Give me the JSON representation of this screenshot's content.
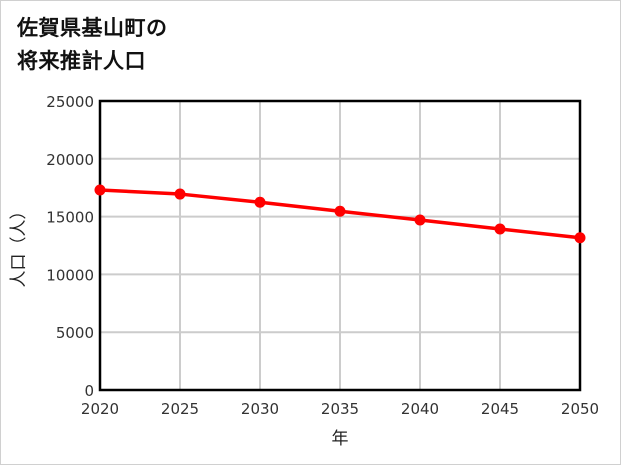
{
  "title": {
    "line1": "佐賀県基山町の",
    "line2": "将来推計人口"
  },
  "colors": {
    "series": "#ff0000",
    "grid": "#cccccc",
    "axis": "#000000",
    "border": "#d0d0d0"
  },
  "chart_data": {
    "type": "line",
    "title": "佐賀県基山町の将来推計人口",
    "xlabel": "年",
    "ylabel": "人口（人）",
    "x": [
      2020,
      2025,
      2030,
      2035,
      2040,
      2045,
      2050
    ],
    "series": [
      {
        "name": "人口",
        "values": [
          17300,
          16950,
          16240,
          15460,
          14710,
          13930,
          13170
        ],
        "color": "#ff0000",
        "marker": "circle"
      }
    ],
    "ylim": [
      0,
      25000
    ],
    "xlim": [
      2020,
      2050
    ],
    "yticks": [
      0,
      5000,
      10000,
      15000,
      20000,
      25000
    ],
    "xticks": [
      2020,
      2025,
      2030,
      2035,
      2040,
      2045,
      2050
    ],
    "grid": true,
    "legend": null
  }
}
